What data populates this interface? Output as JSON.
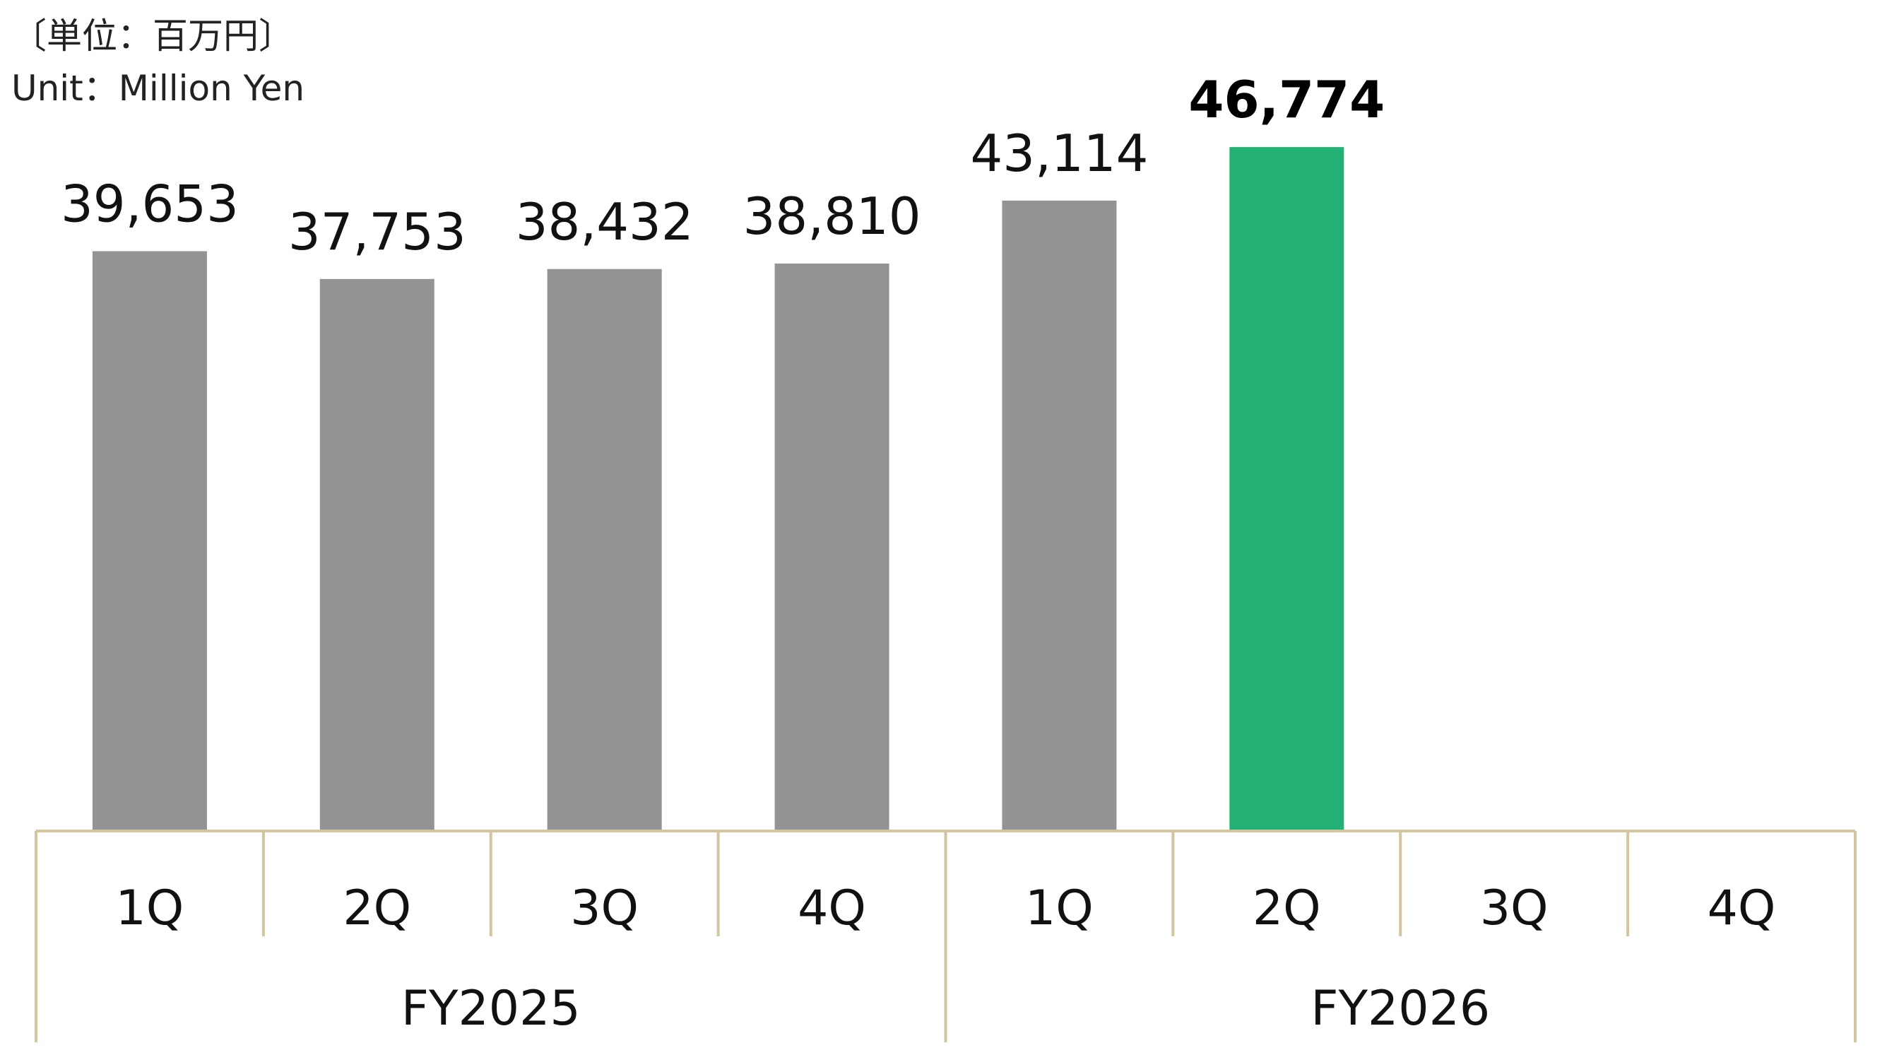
{
  "unit": {
    "japanese": "〔単位：百万円〕",
    "english": "Unit：Million Yen"
  },
  "colors": {
    "bar_default": "#939393",
    "bar_highlight": "#22B074",
    "axis_line": "#D2C6A0"
  },
  "chart_data": {
    "type": "bar",
    "title": "",
    "xlabel": "",
    "ylabel": "",
    "unit": "Million Yen",
    "ylim": [
      0,
      52000
    ],
    "grid": false,
    "categories": [
      "1Q",
      "2Q",
      "3Q",
      "4Q",
      "1Q",
      "2Q",
      "3Q",
      "4Q"
    ],
    "groups": [
      {
        "label": "FY2025",
        "span": 4
      },
      {
        "label": "FY2026",
        "span": 4
      }
    ],
    "values": [
      39653,
      37753,
      38432,
      38810,
      43114,
      46774,
      null,
      null
    ],
    "value_labels": [
      "39,653",
      "37,753",
      "38,432",
      "38,810",
      "43,114",
      "46,774",
      "",
      ""
    ],
    "highlight_index": 5
  }
}
